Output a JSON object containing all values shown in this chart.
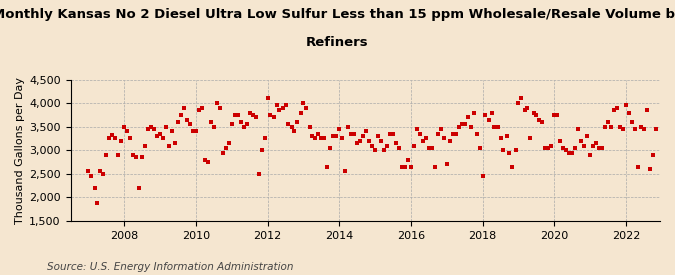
{
  "title_line1": "Monthly Kansas No 2 Diesel Ultra Low Sulfur Less than 15 ppm Wholesale/Resale Volume by",
  "title_line2": "Refiners",
  "ylabel": "Thousand Gallons per Day",
  "source": "Source: U.S. Energy Information Administration",
  "ylim": [
    1500,
    4500
  ],
  "yticks": [
    1500,
    2000,
    2500,
    3000,
    3500,
    4000,
    4500
  ],
  "xticks": [
    2008,
    2010,
    2012,
    2014,
    2016,
    2018,
    2020,
    2022
  ],
  "marker_color": "#cc0000",
  "marker": "s",
  "marker_size": 3.5,
  "background_color": "#f5e6d0",
  "grid_color": "#aaaaaa",
  "title_fontsize": 9.5,
  "ylabel_fontsize": 8,
  "source_fontsize": 7.5,
  "tick_fontsize": 8,
  "data": [
    [
      2007.0,
      2550
    ],
    [
      2007.08,
      2450
    ],
    [
      2007.17,
      2200
    ],
    [
      2007.25,
      1880
    ],
    [
      2007.33,
      2550
    ],
    [
      2007.42,
      2500
    ],
    [
      2007.5,
      2900
    ],
    [
      2007.58,
      3250
    ],
    [
      2007.67,
      3320
    ],
    [
      2007.75,
      3250
    ],
    [
      2007.83,
      2900
    ],
    [
      2007.92,
      3200
    ],
    [
      2008.0,
      3500
    ],
    [
      2008.08,
      3400
    ],
    [
      2008.17,
      3250
    ],
    [
      2008.25,
      2900
    ],
    [
      2008.33,
      2850
    ],
    [
      2008.42,
      2200
    ],
    [
      2008.5,
      2850
    ],
    [
      2008.58,
      3100
    ],
    [
      2008.67,
      3450
    ],
    [
      2008.75,
      3500
    ],
    [
      2008.83,
      3450
    ],
    [
      2008.92,
      3300
    ],
    [
      2009.0,
      3350
    ],
    [
      2009.08,
      3250
    ],
    [
      2009.17,
      3500
    ],
    [
      2009.25,
      3100
    ],
    [
      2009.33,
      3400
    ],
    [
      2009.42,
      3150
    ],
    [
      2009.5,
      3600
    ],
    [
      2009.58,
      3750
    ],
    [
      2009.67,
      3900
    ],
    [
      2009.75,
      3650
    ],
    [
      2009.83,
      3550
    ],
    [
      2009.92,
      3400
    ],
    [
      2010.0,
      3400
    ],
    [
      2010.08,
      3850
    ],
    [
      2010.17,
      3900
    ],
    [
      2010.25,
      2800
    ],
    [
      2010.33,
      2750
    ],
    [
      2010.42,
      3600
    ],
    [
      2010.5,
      3500
    ],
    [
      2010.58,
      4000
    ],
    [
      2010.67,
      3900
    ],
    [
      2010.75,
      2950
    ],
    [
      2010.83,
      3050
    ],
    [
      2010.92,
      3150
    ],
    [
      2011.0,
      3550
    ],
    [
      2011.08,
      3750
    ],
    [
      2011.17,
      3750
    ],
    [
      2011.25,
      3600
    ],
    [
      2011.33,
      3500
    ],
    [
      2011.42,
      3550
    ],
    [
      2011.5,
      3800
    ],
    [
      2011.58,
      3750
    ],
    [
      2011.67,
      3700
    ],
    [
      2011.75,
      2500
    ],
    [
      2011.83,
      3000
    ],
    [
      2011.92,
      3250
    ],
    [
      2012.0,
      4100
    ],
    [
      2012.08,
      3750
    ],
    [
      2012.17,
      3700
    ],
    [
      2012.25,
      3950
    ],
    [
      2012.33,
      3850
    ],
    [
      2012.42,
      3900
    ],
    [
      2012.5,
      3950
    ],
    [
      2012.58,
      3550
    ],
    [
      2012.67,
      3500
    ],
    [
      2012.75,
      3400
    ],
    [
      2012.83,
      3600
    ],
    [
      2012.92,
      3800
    ],
    [
      2013.0,
      4000
    ],
    [
      2013.08,
      3900
    ],
    [
      2013.17,
      3500
    ],
    [
      2013.25,
      3300
    ],
    [
      2013.33,
      3250
    ],
    [
      2013.42,
      3350
    ],
    [
      2013.5,
      3250
    ],
    [
      2013.58,
      3250
    ],
    [
      2013.67,
      2650
    ],
    [
      2013.75,
      3050
    ],
    [
      2013.83,
      3300
    ],
    [
      2013.92,
      3300
    ],
    [
      2014.0,
      3450
    ],
    [
      2014.08,
      3250
    ],
    [
      2014.17,
      2550
    ],
    [
      2014.25,
      3500
    ],
    [
      2014.33,
      3350
    ],
    [
      2014.42,
      3350
    ],
    [
      2014.5,
      3150
    ],
    [
      2014.58,
      3200
    ],
    [
      2014.67,
      3300
    ],
    [
      2014.75,
      3400
    ],
    [
      2014.83,
      3200
    ],
    [
      2014.92,
      3100
    ],
    [
      2015.0,
      3000
    ],
    [
      2015.08,
      3300
    ],
    [
      2015.17,
      3200
    ],
    [
      2015.25,
      3000
    ],
    [
      2015.33,
      3100
    ],
    [
      2015.42,
      3350
    ],
    [
      2015.5,
      3350
    ],
    [
      2015.58,
      3150
    ],
    [
      2015.67,
      3050
    ],
    [
      2015.75,
      2650
    ],
    [
      2015.83,
      2650
    ],
    [
      2015.92,
      2800
    ],
    [
      2016.0,
      2650
    ],
    [
      2016.08,
      3100
    ],
    [
      2016.17,
      3450
    ],
    [
      2016.25,
      3350
    ],
    [
      2016.33,
      3200
    ],
    [
      2016.42,
      3250
    ],
    [
      2016.5,
      3050
    ],
    [
      2016.58,
      3050
    ],
    [
      2016.67,
      2650
    ],
    [
      2016.75,
      3350
    ],
    [
      2016.83,
      3450
    ],
    [
      2016.92,
      3250
    ],
    [
      2017.0,
      2700
    ],
    [
      2017.08,
      3200
    ],
    [
      2017.17,
      3350
    ],
    [
      2017.25,
      3350
    ],
    [
      2017.33,
      3500
    ],
    [
      2017.42,
      3550
    ],
    [
      2017.5,
      3550
    ],
    [
      2017.58,
      3700
    ],
    [
      2017.67,
      3500
    ],
    [
      2017.75,
      3800
    ],
    [
      2017.83,
      3350
    ],
    [
      2017.92,
      3050
    ],
    [
      2018.0,
      2450
    ],
    [
      2018.08,
      3750
    ],
    [
      2018.17,
      3650
    ],
    [
      2018.25,
      3800
    ],
    [
      2018.33,
      3500
    ],
    [
      2018.42,
      3500
    ],
    [
      2018.5,
      3250
    ],
    [
      2018.58,
      3000
    ],
    [
      2018.67,
      3300
    ],
    [
      2018.75,
      2950
    ],
    [
      2018.83,
      2650
    ],
    [
      2018.92,
      3000
    ],
    [
      2019.0,
      4000
    ],
    [
      2019.08,
      4100
    ],
    [
      2019.17,
      3850
    ],
    [
      2019.25,
      3900
    ],
    [
      2019.33,
      3250
    ],
    [
      2019.42,
      3800
    ],
    [
      2019.5,
      3750
    ],
    [
      2019.58,
      3650
    ],
    [
      2019.67,
      3600
    ],
    [
      2019.75,
      3050
    ],
    [
      2019.83,
      3050
    ],
    [
      2019.92,
      3100
    ],
    [
      2020.0,
      3750
    ],
    [
      2020.08,
      3750
    ],
    [
      2020.17,
      3200
    ],
    [
      2020.25,
      3050
    ],
    [
      2020.33,
      3000
    ],
    [
      2020.42,
      2950
    ],
    [
      2020.5,
      2950
    ],
    [
      2020.58,
      3050
    ],
    [
      2020.67,
      3450
    ],
    [
      2020.75,
      3200
    ],
    [
      2020.83,
      3100
    ],
    [
      2020.92,
      3300
    ],
    [
      2021.0,
      2900
    ],
    [
      2021.08,
      3100
    ],
    [
      2021.17,
      3150
    ],
    [
      2021.25,
      3050
    ],
    [
      2021.33,
      3050
    ],
    [
      2021.42,
      3500
    ],
    [
      2021.5,
      3600
    ],
    [
      2021.58,
      3500
    ],
    [
      2021.67,
      3850
    ],
    [
      2021.75,
      3900
    ],
    [
      2021.83,
      3500
    ],
    [
      2021.92,
      3450
    ],
    [
      2022.0,
      3950
    ],
    [
      2022.08,
      3800
    ],
    [
      2022.17,
      3600
    ],
    [
      2022.25,
      3450
    ],
    [
      2022.33,
      2650
    ],
    [
      2022.42,
      3500
    ],
    [
      2022.5,
      3450
    ],
    [
      2022.58,
      3850
    ],
    [
      2022.67,
      2600
    ],
    [
      2022.75,
      2900
    ],
    [
      2022.83,
      3450
    ]
  ]
}
